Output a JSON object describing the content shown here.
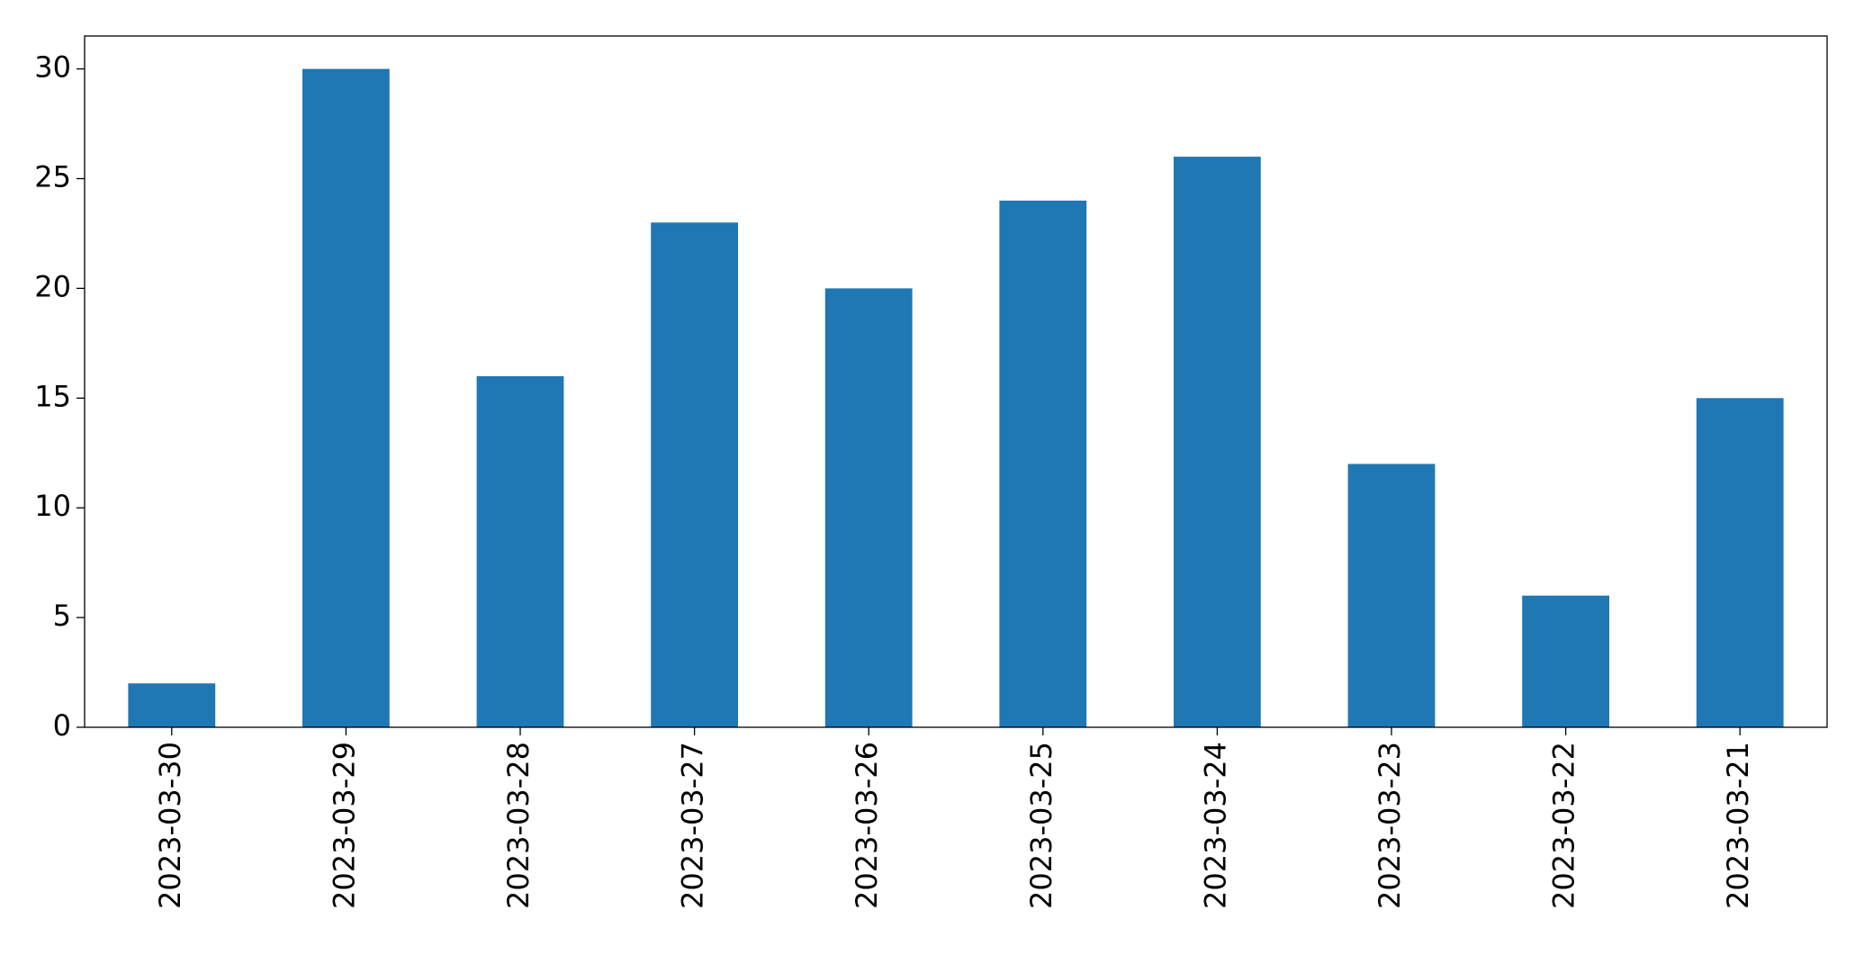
{
  "chart_data": {
    "type": "bar",
    "categories": [
      "2023-03-30",
      "2023-03-29",
      "2023-03-28",
      "2023-03-27",
      "2023-03-26",
      "2023-03-25",
      "2023-03-24",
      "2023-03-23",
      "2023-03-22",
      "2023-03-21"
    ],
    "values": [
      2,
      30,
      16,
      23,
      20,
      24,
      26,
      12,
      6,
      15
    ],
    "color": "#1f77b4",
    "ylim": [
      0,
      31.5
    ],
    "yticks": [
      0,
      5,
      10,
      15,
      20,
      25,
      30
    ],
    "grid": false
  }
}
